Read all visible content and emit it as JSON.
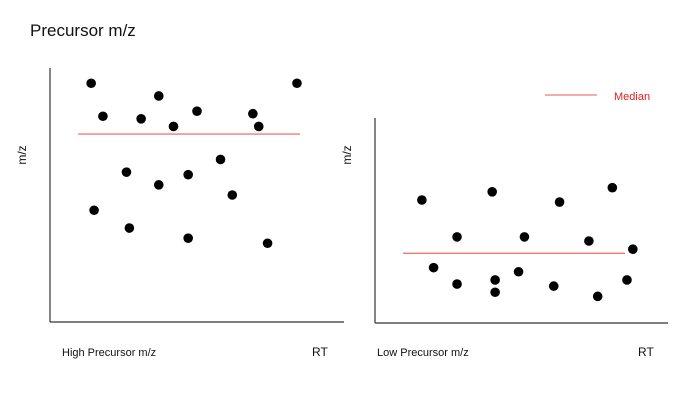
{
  "page": {
    "title": "Precursor m/z"
  },
  "colors": {
    "points": "#000000",
    "median": "#f07a7a",
    "axes": "#333333",
    "text": "#111111"
  },
  "legend": {
    "label": "Median",
    "position": "top-right"
  },
  "chart_data": [
    {
      "type": "scatter",
      "title": "High Precursor m/z",
      "xlabel": "RT",
      "ylabel": "m/z",
      "xlim": [
        0,
        100
      ],
      "ylim": [
        0,
        100
      ],
      "grid": false,
      "median": 74,
      "points": [
        {
          "x": 14,
          "y": 94
        },
        {
          "x": 18,
          "y": 81
        },
        {
          "x": 31,
          "y": 80
        },
        {
          "x": 37,
          "y": 89
        },
        {
          "x": 42,
          "y": 77
        },
        {
          "x": 50,
          "y": 83
        },
        {
          "x": 69,
          "y": 82
        },
        {
          "x": 71,
          "y": 77
        },
        {
          "x": 84,
          "y": 94
        },
        {
          "x": 26,
          "y": 59
        },
        {
          "x": 37,
          "y": 54
        },
        {
          "x": 47,
          "y": 58
        },
        {
          "x": 58,
          "y": 64
        },
        {
          "x": 62,
          "y": 50
        },
        {
          "x": 15,
          "y": 44
        },
        {
          "x": 27,
          "y": 37
        },
        {
          "x": 47,
          "y": 33
        },
        {
          "x": 74,
          "y": 31
        }
      ]
    },
    {
      "type": "scatter",
      "title": "Low Precursor m/z",
      "xlabel": "RT",
      "ylabel": "m/z",
      "xlim": [
        0,
        100
      ],
      "ylim": [
        0,
        100
      ],
      "grid": false,
      "median": 34,
      "points": [
        {
          "x": 16,
          "y": 60
        },
        {
          "x": 28,
          "y": 42
        },
        {
          "x": 40,
          "y": 64
        },
        {
          "x": 51,
          "y": 42
        },
        {
          "x": 63,
          "y": 59
        },
        {
          "x": 73,
          "y": 40
        },
        {
          "x": 81,
          "y": 66
        },
        {
          "x": 88,
          "y": 36
        },
        {
          "x": 20,
          "y": 27
        },
        {
          "x": 28,
          "y": 19
        },
        {
          "x": 41,
          "y": 21
        },
        {
          "x": 49,
          "y": 25
        },
        {
          "x": 61,
          "y": 18
        },
        {
          "x": 76,
          "y": 13
        },
        {
          "x": 86,
          "y": 21
        },
        {
          "x": 41,
          "y": 15
        }
      ]
    }
  ]
}
